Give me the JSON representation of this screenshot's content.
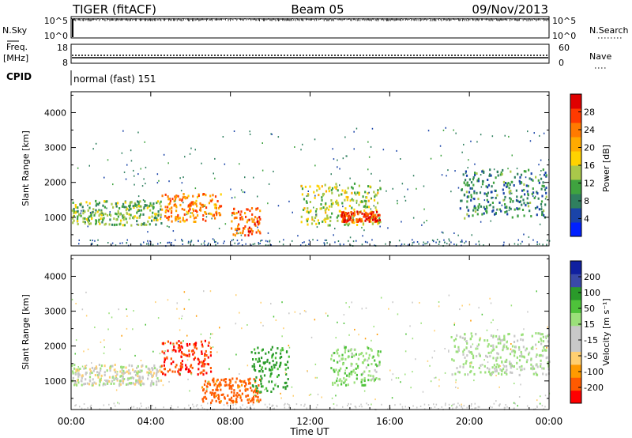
{
  "header": {
    "radar": "TIGER (fitACF)",
    "beam": "Beam 05",
    "date": "09/Nov/2013"
  },
  "side_labels": {
    "nsky": "N.Sky",
    "nsearch": "N.Search",
    "freq_line1": "Freq.",
    "freq_line2": "[MHz]",
    "nave": "Nave",
    "cpid": "CPID"
  },
  "cpid_text": "normal (fast) 151",
  "time_axis": {
    "label": "Time UT",
    "ticks": [
      "00:00",
      "04:00",
      "08:00",
      "12:00",
      "16:00",
      "20:00",
      "00:00"
    ]
  },
  "colors": {
    "power_scale": [
      "#0020ff",
      "#1a44a8",
      "#2f7f5f",
      "#3fa33f",
      "#a9c84a",
      "#ffd200",
      "#ffaa00",
      "#ff7a00",
      "#ff3a00",
      "#e00000"
    ],
    "velocity_scale": [
      "#ff0000",
      "#ff5a00",
      "#ff9a00",
      "#ffcf70",
      "#c8c8c8",
      "#c8c8c8",
      "#9be07a",
      "#4ec23a",
      "#2a9a2a",
      "#3a4aa8",
      "#1020a0"
    ]
  },
  "chart_data": [
    {
      "type": "line",
      "panel": "nsky-nsearch",
      "left_axis": {
        "label": "N.Sky",
        "ticks": [
          "10^5",
          "10^0"
        ],
        "log": true
      },
      "right_axis": {
        "label": "N.Search",
        "ticks": [
          "10^5",
          "10^0"
        ],
        "log": true
      },
      "description_values": {
        "nsky_level": "near 10^5 throughout the day"
      }
    },
    {
      "type": "line",
      "panel": "freq-nave",
      "left_axis": {
        "label": "Freq. [MHz]",
        "ticks": [
          "18",
          "8"
        ],
        "ylim": [
          8,
          18
        ]
      },
      "right_axis": {
        "label": "Nave",
        "ticks": [
          "60",
          "0"
        ],
        "ylim": [
          0,
          60
        ]
      },
      "series": [
        {
          "name": "Freq.",
          "values_mhz": [
            10.3,
            10.3,
            10.3,
            10.3,
            10.3,
            10.3,
            10.3
          ]
        },
        {
          "name": "Nave",
          "values": [
            21,
            21,
            21,
            21,
            21,
            21,
            21
          ]
        }
      ]
    },
    {
      "type": "heatmap",
      "panel": "power",
      "ylabel": "Slant Range [km]",
      "yticks": [
        "1000",
        "2000",
        "3000",
        "4000"
      ],
      "ylim_km": [
        180,
        4600
      ],
      "xlim_hours": [
        0,
        24
      ],
      "colorbar": {
        "label": "Power [dB]",
        "ticks": [
          "4",
          "8",
          "12",
          "16",
          "20",
          "24",
          "28"
        ],
        "range": [
          0,
          30
        ]
      },
      "features": [
        {
          "t0": 0.0,
          "t1": 4.5,
          "range_km": [
            800,
            1500
          ],
          "value_db": 12
        },
        {
          "t0": 4.5,
          "t1": 7.5,
          "range_km": [
            900,
            1700
          ],
          "value_db": 22
        },
        {
          "t0": 8.0,
          "t1": 9.5,
          "range_km": [
            500,
            1300
          ],
          "value_db": 24
        },
        {
          "t0": 11.5,
          "t1": 15.5,
          "range_km": [
            800,
            2000
          ],
          "value_db": 14
        },
        {
          "t0": 13.5,
          "t1": 15.5,
          "range_km": [
            900,
            1200
          ],
          "value_db": 26
        },
        {
          "t0": 19.5,
          "t1": 24.0,
          "range_km": [
            1000,
            2400
          ],
          "value_db": 8
        }
      ]
    },
    {
      "type": "heatmap",
      "panel": "velocity",
      "ylabel": "Slant Range [km]",
      "yticks": [
        "1000",
        "2000",
        "3000",
        "4000"
      ],
      "ylim_km": [
        180,
        4600
      ],
      "xlim_hours": [
        0,
        24
      ],
      "colorbar": {
        "label": "Velocity [m s^-1]",
        "ticks": [
          "200",
          "100",
          "50",
          "15",
          "-15",
          "-50",
          "-100",
          "-200"
        ],
        "range": [
          -250,
          250
        ]
      },
      "features": [
        {
          "t0": 0.0,
          "t1": 4.5,
          "range_km": [
            900,
            1500
          ],
          "value_ms": 0
        },
        {
          "t0": 4.5,
          "t1": 7.0,
          "range_km": [
            1200,
            2200
          ],
          "value_ms": -200
        },
        {
          "t0": 6.5,
          "t1": 9.5,
          "range_km": [
            400,
            1100
          ],
          "value_ms": -120
        },
        {
          "t0": 9.0,
          "t1": 11.0,
          "range_km": [
            700,
            2000
          ],
          "value_ms": 120
        },
        {
          "t0": 13.0,
          "t1": 15.5,
          "range_km": [
            900,
            2000
          ],
          "value_ms": 40
        },
        {
          "t0": 19.0,
          "t1": 24.0,
          "range_km": [
            1200,
            2400
          ],
          "value_ms": 20
        }
      ]
    }
  ]
}
